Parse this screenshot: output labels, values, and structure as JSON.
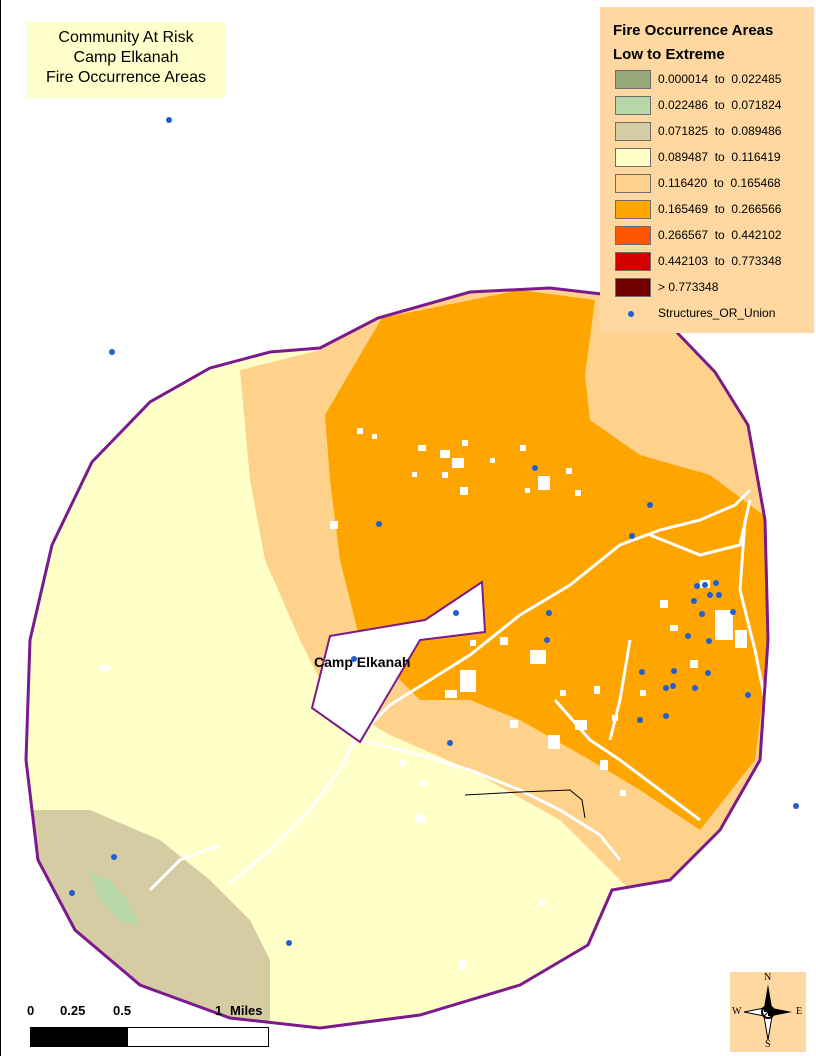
{
  "title": {
    "lines": [
      "Community At Risk",
      "Camp Elkanah",
      "Fire Occurrence Areas"
    ]
  },
  "legend": {
    "title": "Fire Occurrence Areas",
    "subtitle": "Low to Extreme",
    "classes": [
      {
        "label": "0.000014  to  0.022485",
        "color": "#96a878"
      },
      {
        "label": "0.022486  to  0.071824",
        "color": "#b7d7a8"
      },
      {
        "label": "0.071825  to  0.089486",
        "color": "#d6cca3"
      },
      {
        "label": "0.089487  to  0.116419",
        "color": "#ffffc8"
      },
      {
        "label": "0.116420  to  0.165468",
        "color": "#fed28a"
      },
      {
        "label": "0.165469  to  0.266566",
        "color": "#ffa500"
      },
      {
        "label": "0.266567  to  0.442102",
        "color": "#ff5500"
      },
      {
        "label": "0.442103  to  0.773348",
        "color": "#d40000"
      },
      {
        "label": "> 0.773348",
        "color": "#730000"
      }
    ],
    "structures_label": "Structures_OR_Union",
    "structures_color": "#1f5fd1"
  },
  "place_label": "Camp Elkanah",
  "scale_bar": {
    "ticks": [
      "0",
      "0.25",
      "0.5",
      "1"
    ],
    "unit": "Miles"
  },
  "compass": {
    "n": "N",
    "s": "S",
    "e": "E",
    "w": "W"
  },
  "colors": {
    "boundary": "#7b1a8c",
    "road": "#ffffff",
    "stream": "#000000"
  }
}
